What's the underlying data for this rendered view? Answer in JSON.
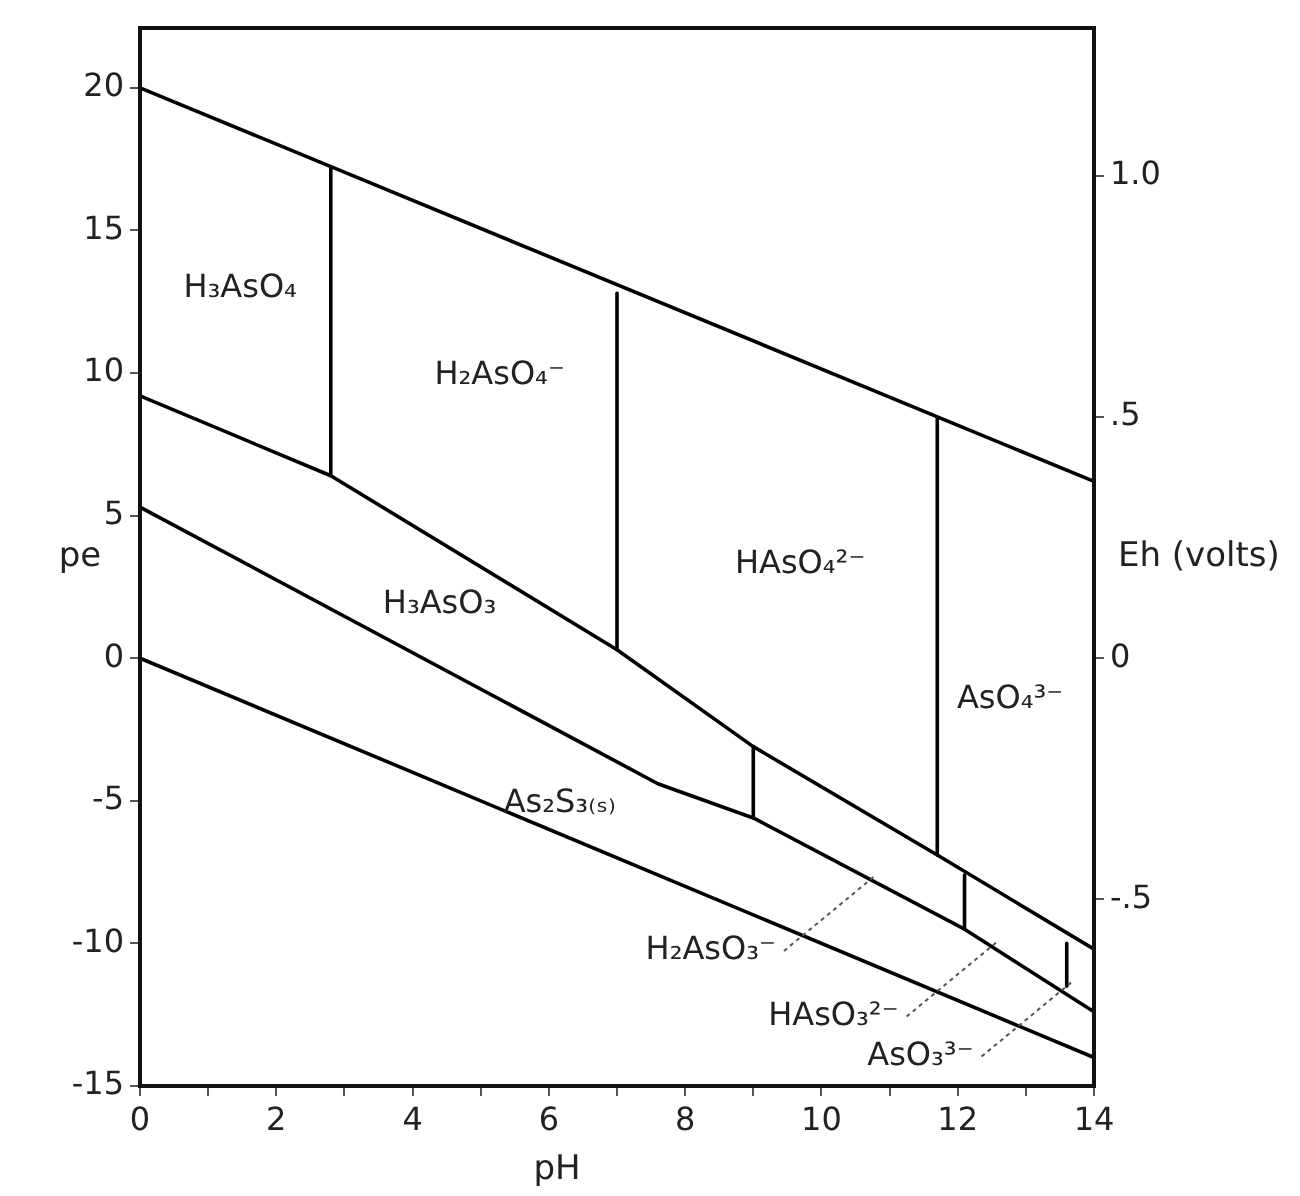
{
  "chart_data": {
    "type": "line",
    "xlabel": "pH",
    "ylabel": "pe",
    "y2label": "Eh (volts)",
    "xlim": [
      0,
      14
    ],
    "ylim": [
      -15,
      22.1
    ],
    "y2lim": [
      -0.887,
      1.307
    ],
    "xticks": [
      0,
      {
        "value": 1,
        "label": null
      },
      2,
      {
        "value": 3,
        "label": null
      },
      4,
      {
        "value": 5,
        "label": null
      },
      6,
      {
        "value": 7,
        "label": null
      },
      8,
      {
        "value": 9,
        "label": null
      },
      10,
      {
        "value": 11,
        "label": null
      },
      12,
      {
        "value": 13,
        "label": null
      },
      14
    ],
    "yticks": [
      -15,
      -10,
      -5,
      0,
      5,
      10,
      15,
      20
    ],
    "y2ticks": [
      {
        "value": -0.5,
        "label": "-.5"
      },
      0,
      {
        "value": 0.5,
        "label": ".5"
      },
      {
        "value": 1,
        "label": "1.0"
      }
    ],
    "grid": false,
    "legend": false,
    "marker": "none",
    "line_style": "solid",
    "series": [
      {
        "color": "#000000",
        "x": [
          0,
          14
        ],
        "values": [
          20,
          6.2
        ]
      },
      {
        "color": "#000000",
        "x": [
          0,
          2.8,
          7.0,
          9.0,
          11.7,
          14
        ],
        "values": [
          9.2,
          6.4,
          0.3,
          -3.1,
          -6.9,
          -10.2
        ]
      },
      {
        "color": "#000000",
        "x": [
          0,
          7.6,
          9.0,
          12.1,
          14
        ],
        "values": [
          5.3,
          -4.4,
          -5.6,
          -9.5,
          -12.4
        ]
      },
      {
        "color": "#000000",
        "x": [
          0,
          14
        ],
        "values": [
          0,
          -14
        ]
      },
      {
        "color": "#000000",
        "x": [
          2.8,
          2.8
        ],
        "values": [
          6.4,
          17.2
        ]
      },
      {
        "color": "#000000",
        "x": [
          7.0,
          7.0
        ],
        "values": [
          0.3,
          12.8
        ]
      },
      {
        "color": "#000000",
        "x": [
          11.7,
          11.7
        ],
        "values": [
          -6.9,
          8.4
        ]
      },
      {
        "color": "#000000",
        "x": [
          9.0,
          9.0
        ],
        "values": [
          -3.1,
          -5.6
        ]
      },
      {
        "color": "#000000",
        "x": [
          12.1,
          12.1
        ],
        "values": [
          -7.6,
          -9.5
        ]
      },
      {
        "color": "#000000",
        "x": [
          13.6,
          13.6
        ],
        "values": [
          -10.0,
          -11.5
        ]
      }
    ],
    "annotations": [
      "H₃AsO₄",
      "H₂AsO₄⁻",
      "HAsO₄²⁻",
      "AsO₄³⁻",
      "H₃AsO₃",
      "As₂S₃₍ₛ₎",
      {
        "text": "H₂AsO₃⁻",
        "x": 10.8,
        "y": -7.6
      },
      {
        "text": "HAsO₃²⁻",
        "x": 12.6,
        "y": -9.9
      },
      {
        "text": "AsO₃³⁻",
        "x": 13.7,
        "y": -11.3
      }
    ]
  }
}
